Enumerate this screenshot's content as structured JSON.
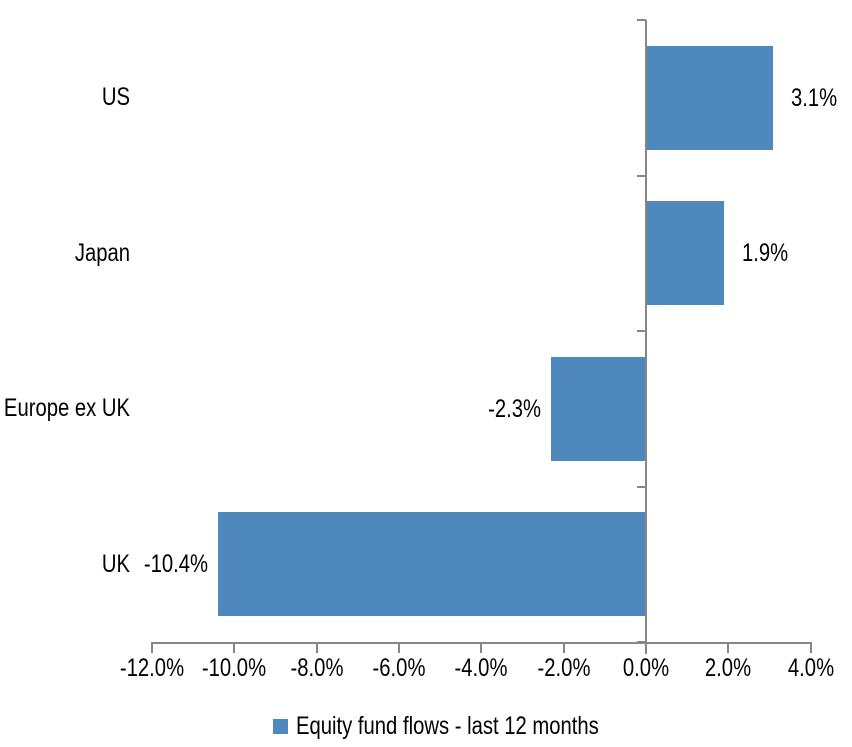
{
  "chart_data": {
    "type": "bar",
    "orientation": "horizontal",
    "title": "",
    "categories": [
      "US",
      "Japan",
      "Europe ex UK",
      "UK"
    ],
    "series": [
      {
        "name": "Equity fund flows - last 12 months",
        "values": [
          3.1,
          1.9,
          -2.3,
          -10.4
        ],
        "data_labels": [
          "3.1%",
          "1.9%",
          "-2.3%",
          "-10.4%"
        ]
      }
    ],
    "xlabel": "",
    "ylabel": "",
    "xlim": [
      -12,
      4
    ],
    "x_tick_values": [
      -12,
      -10,
      -8,
      -6,
      -4,
      -2,
      0,
      2,
      4
    ],
    "x_tick_labels": [
      "-12.0%",
      "-10.0%",
      "-8.0%",
      "-6.0%",
      "-4.0%",
      "-2.0%",
      "0.0%",
      "2.0%",
      "4.0%"
    ],
    "grid": false,
    "legend": {
      "position": "bottom",
      "entries": [
        "Equity fund flows - last 12 months"
      ]
    },
    "colors": {
      "bar": "#4E88BD",
      "axis": "#868686",
      "text": "#000000",
      "background": "#FFFFFF"
    }
  }
}
